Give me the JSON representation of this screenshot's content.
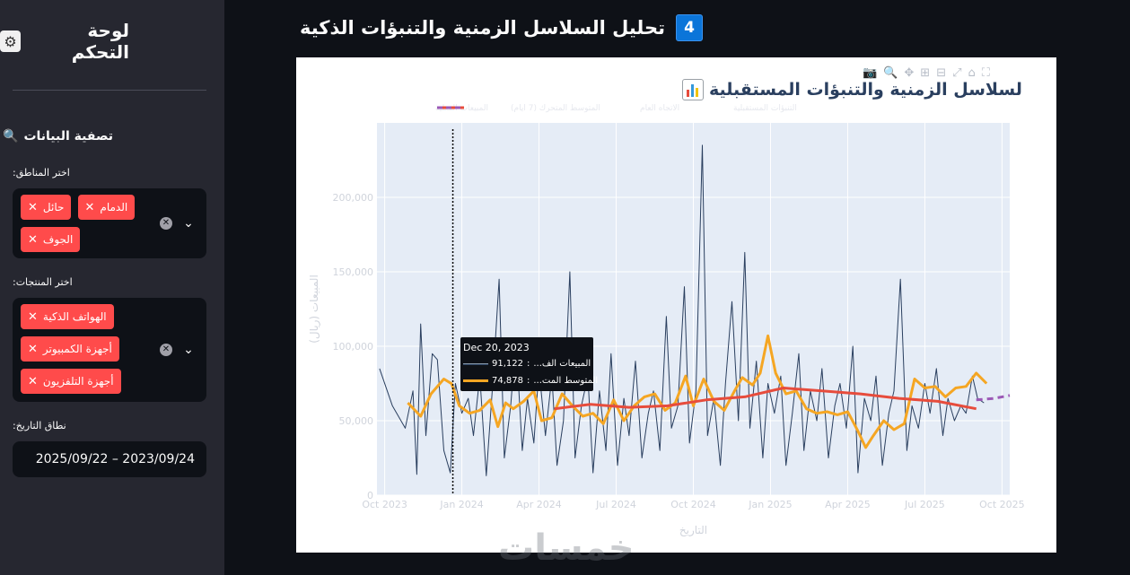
{
  "sidebar": {
    "title": "لوحة التحكم",
    "title_icon": "control-knobs-icon",
    "filter_title": "تصفية البيانات",
    "filter_icon": "magnifier-icon",
    "regions_label": "اختر المناطق:",
    "regions": [
      "حائل",
      "الدمام",
      "الجوف"
    ],
    "products_label": "اختر المنتجات:",
    "products": [
      "الهواتف الذكية",
      "أجهزة الكمبيوتر",
      "أجهزة التلفزيون"
    ],
    "date_label": "نطاق التاريخ:",
    "date_value": "2023/09/24 – 2025/09/22"
  },
  "main": {
    "badge": "4",
    "title": "تحليل السلاسل الزمنية والتنبؤات الذكية"
  },
  "chart": {
    "title": "لسلاسل الزمنية والتنبؤات المستقبلية",
    "legend": [
      "المبيعات الفعلية",
      "المتوسط المتحرك (7 أيام)",
      "الاتجاه العام",
      "التنبؤات المستقبلية"
    ],
    "tooltip": {
      "date": "Dec 20, 2023",
      "row1_label": "المبيعات الف...",
      "row1_value": "91,122",
      "row2_label": "المتوسط المت...",
      "row2_value": "74,878"
    },
    "watermark": "خمسات",
    "colors": {
      "actual": "#2a3f5f",
      "ma": "#f5a623",
      "trend": "#e74c3c",
      "forecast": "#9b59b6"
    }
  },
  "chart_data": {
    "type": "line",
    "title": "لسلاسل الزمنية والتنبؤات المستقبلية",
    "xlabel": "التاريخ",
    "ylabel": "المبيعات (ريال)",
    "ylim": [
      0,
      250000
    ],
    "yticks": [
      0,
      50000,
      100000,
      150000,
      200000
    ],
    "ytick_labels": [
      "0",
      "50,000",
      "100,000",
      "150,000",
      "200,000"
    ],
    "xticks": [
      "Oct 2023",
      "Jan 2024",
      "Apr 2024",
      "Jul 2024",
      "Oct 2024",
      "Jan 2025",
      "Apr 2025",
      "Jul 2025",
      "Oct 2025"
    ],
    "x_range_months": [
      -0.3,
      24.3
    ],
    "hover_month": 2.65,
    "series": [
      {
        "name": "المبيعات الفعلية",
        "x": [
          -0.2,
          0.3,
          0.8,
          1.1,
          1.25,
          1.4,
          1.6,
          1.85,
          2.05,
          2.3,
          2.55,
          2.75,
          3.0,
          3.25,
          3.45,
          3.7,
          3.95,
          4.2,
          4.45,
          4.65,
          4.9,
          5.1,
          5.35,
          5.55,
          5.8,
          6.0,
          6.25,
          6.5,
          6.7,
          6.95,
          7.2,
          7.4,
          7.65,
          7.9,
          8.1,
          8.35,
          8.6,
          8.8,
          9.05,
          9.3,
          9.5,
          9.75,
          10.0,
          10.25,
          10.45,
          10.7,
          10.95,
          11.15,
          11.4,
          11.65,
          11.85,
          12.1,
          12.35,
          12.55,
          12.8,
          13.05,
          13.25,
          13.5,
          13.75,
          14.0,
          14.2,
          14.45,
          14.7,
          14.9,
          15.15,
          15.4,
          15.6,
          15.85,
          16.1,
          16.3,
          16.55,
          16.8,
          17.0,
          17.25,
          17.5,
          17.7,
          17.95,
          18.2,
          18.4,
          18.65,
          18.9,
          19.1,
          19.35,
          19.6,
          19.8,
          20.05,
          20.3,
          20.5,
          20.75,
          21.0,
          21.2,
          21.45,
          21.7,
          21.9,
          22.15,
          22.4,
          22.6,
          22.85,
          23.05,
          23.3
        ],
        "y": [
          85000,
          60000,
          45000,
          70000,
          14000,
          115000,
          40000,
          95000,
          91000,
          30000,
          15000,
          75000,
          55000,
          65000,
          40000,
          80000,
          13000,
          75000,
          145000,
          25000,
          60000,
          105000,
          30000,
          65000,
          35000,
          85000,
          40000,
          80000,
          20000,
          50000,
          150000,
          25000,
          60000,
          80000,
          15000,
          70000,
          30000,
          95000,
          20000,
          65000,
          40000,
          90000,
          25000,
          55000,
          70000,
          30000,
          120000,
          45000,
          60000,
          140000,
          35000,
          70000,
          235000,
          40000,
          65000,
          20000,
          75000,
          130000,
          50000,
          163000,
          45000,
          90000,
          25000,
          75000,
          55000,
          80000,
          20000,
          55000,
          95000,
          30000,
          70000,
          50000,
          85000,
          25000,
          60000,
          75000,
          45000,
          100000,
          15000,
          65000,
          50000,
          80000,
          20000,
          55000,
          70000,
          145000,
          30000,
          60000,
          45000,
          75000,
          55000,
          85000,
          40000,
          65000,
          50000,
          60000,
          55000,
          80000,
          65000,
          62000
        ]
      },
      {
        "name": "المتوسط المتحرك (7 أيام)",
        "x": [
          0.9,
          1.4,
          1.8,
          2.3,
          2.6,
          2.9,
          3.3,
          3.7,
          4.1,
          4.4,
          4.7,
          5.0,
          5.4,
          5.8,
          6.1,
          6.5,
          6.9,
          7.3,
          7.7,
          8.1,
          8.5,
          8.9,
          9.3,
          9.7,
          10.1,
          10.5,
          10.9,
          11.3,
          11.7,
          12.0,
          12.4,
          12.8,
          13.2,
          13.6,
          13.9,
          14.3,
          14.6,
          14.9,
          15.2,
          15.6,
          16.0,
          16.4,
          16.8,
          17.2,
          17.6,
          18.0,
          18.4,
          18.7,
          19.0,
          19.4,
          19.8,
          20.2,
          20.6,
          21.0,
          21.4,
          21.8,
          22.2,
          22.6,
          23.0,
          23.4
        ],
        "y": [
          62000,
          53000,
          68000,
          78000,
          74878,
          60000,
          55000,
          57000,
          64000,
          46000,
          62000,
          58000,
          63000,
          70000,
          50000,
          52000,
          68000,
          60000,
          53000,
          55000,
          48000,
          64000,
          50000,
          60000,
          66000,
          68000,
          57000,
          62000,
          80000,
          60000,
          78000,
          63000,
          57000,
          70000,
          79000,
          74000,
          82000,
          107000,
          82000,
          68000,
          70000,
          58000,
          55000,
          56000,
          54000,
          56000,
          43000,
          32000,
          40000,
          50000,
          44000,
          48000,
          78000,
          72000,
          73000,
          66000,
          72000,
          73000,
          82000,
          75000
        ]
      },
      {
        "name": "الاتجاه العام",
        "x": [
          6.6,
          8.0,
          9.5,
          11.0,
          12.5,
          14.0,
          15.5,
          17.0,
          18.5,
          20.0,
          21.5,
          23.0
        ],
        "y": [
          58000,
          61000,
          59000,
          60000,
          64000,
          66000,
          72000,
          70000,
          68000,
          65000,
          63000,
          58000
        ]
      },
      {
        "name": "التنبؤات المستقبلية",
        "x": [
          23.0,
          23.7,
          24.3
        ],
        "y": [
          64000,
          65000,
          67000
        ]
      }
    ]
  }
}
